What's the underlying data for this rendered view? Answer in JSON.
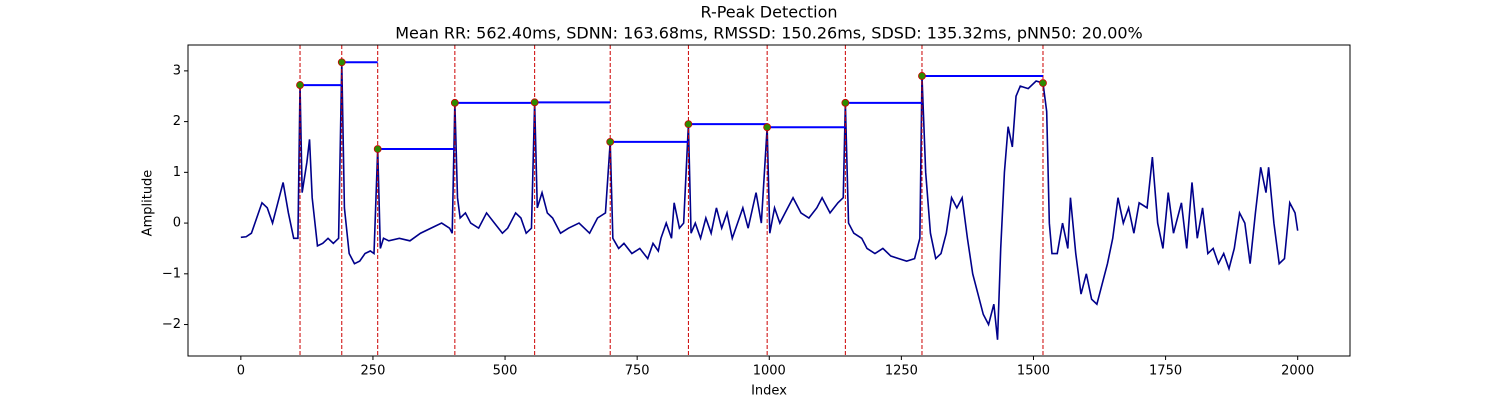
{
  "chart_data": {
    "type": "line",
    "title": "R-Peak Detection",
    "subtitle": "Mean RR: 562.40ms, SDNN: 163.68ms, RMSSD: 150.26ms, SDSD: 135.32ms, pNN50: 20.00%",
    "x_label": "Index",
    "y_label": "Amplitude",
    "xlim": [
      -100,
      2099
    ],
    "ylim": [
      -2.62,
      3.51
    ],
    "xticks": [
      0,
      250,
      500,
      750,
      1000,
      1250,
      1500,
      1750,
      2000
    ],
    "yticks": [
      {
        "value": -2,
        "label": "−2"
      },
      {
        "value": -1,
        "label": "−1"
      },
      0,
      1,
      2,
      3
    ],
    "signal": {
      "color": "#00008b",
      "x": [
        0,
        10,
        20,
        30,
        40,
        50,
        60,
        70,
        80,
        90,
        100,
        108,
        112,
        116,
        125,
        130,
        135,
        145,
        155,
        165,
        175,
        185,
        191,
        196,
        205,
        215,
        225,
        235,
        245,
        252,
        259,
        264,
        270,
        280,
        300,
        320,
        340,
        360,
        380,
        395,
        400,
        405,
        410,
        415,
        425,
        435,
        450,
        465,
        480,
        495,
        505,
        520,
        530,
        540,
        550,
        556,
        561,
        570,
        580,
        590,
        605,
        620,
        640,
        660,
        675,
        690,
        699,
        704,
        715,
        725,
        740,
        755,
        770,
        780,
        790,
        795,
        805,
        815,
        820,
        830,
        838,
        847,
        852,
        860,
        870,
        880,
        890,
        900,
        910,
        920,
        930,
        940,
        950,
        960,
        975,
        985,
        996,
        1001,
        1010,
        1020,
        1030,
        1045,
        1060,
        1075,
        1090,
        1100,
        1115,
        1130,
        1140,
        1144,
        1150,
        1160,
        1175,
        1185,
        1200,
        1215,
        1230,
        1245,
        1260,
        1275,
        1285,
        1289,
        1296,
        1305,
        1315,
        1325,
        1335,
        1345,
        1355,
        1365,
        1375,
        1385,
        1395,
        1405,
        1415,
        1425,
        1432,
        1438,
        1445,
        1452,
        1460,
        1467,
        1475,
        1490,
        1505,
        1518,
        1525,
        1530,
        1535,
        1545,
        1555,
        1565,
        1570,
        1580,
        1590,
        1600,
        1610,
        1620,
        1630,
        1640,
        1650,
        1660,
        1670,
        1680,
        1690,
        1700,
        1715,
        1725,
        1735,
        1745,
        1755,
        1765,
        1780,
        1790,
        1800,
        1810,
        1820,
        1830,
        1840,
        1850,
        1860,
        1870,
        1880,
        1890,
        1900,
        1910,
        1920,
        1930,
        1940,
        1945,
        1955,
        1965,
        1975,
        1985,
        1995,
        2000
      ],
      "values": [
        -0.28,
        -0.27,
        -0.2,
        0.1,
        0.4,
        0.3,
        0.0,
        0.4,
        0.8,
        0.2,
        -0.3,
        -0.3,
        2.72,
        0.6,
        1.2,
        1.65,
        0.5,
        -0.45,
        -0.4,
        -0.3,
        -0.4,
        -0.3,
        3.17,
        0.3,
        -0.6,
        -0.8,
        -0.75,
        -0.6,
        -0.55,
        -0.6,
        1.46,
        -0.5,
        -0.3,
        -0.35,
        -0.3,
        -0.35,
        -0.2,
        -0.1,
        0.0,
        -0.1,
        -0.2,
        2.37,
        0.5,
        0.1,
        0.2,
        0.0,
        -0.1,
        0.2,
        0.0,
        -0.2,
        -0.1,
        0.2,
        0.1,
        -0.2,
        -0.1,
        2.38,
        0.3,
        0.6,
        0.2,
        0.1,
        -0.2,
        -0.1,
        0.0,
        -0.2,
        0.1,
        0.2,
        1.6,
        -0.3,
        -0.5,
        -0.4,
        -0.6,
        -0.5,
        -0.7,
        -0.4,
        -0.55,
        -0.3,
        0.0,
        -0.3,
        0.4,
        -0.1,
        0.0,
        1.95,
        -0.2,
        0.0,
        -0.3,
        0.1,
        -0.2,
        0.3,
        -0.1,
        0.2,
        -0.3,
        0.0,
        0.3,
        -0.1,
        0.6,
        0.0,
        1.89,
        -0.2,
        0.3,
        0.0,
        0.2,
        0.5,
        0.2,
        0.1,
        0.3,
        0.5,
        0.2,
        0.4,
        0.5,
        2.37,
        0.0,
        -0.2,
        -0.3,
        -0.5,
        -0.6,
        -0.5,
        -0.65,
        -0.7,
        -0.75,
        -0.7,
        -0.3,
        2.9,
        1.0,
        -0.2,
        -0.7,
        -0.6,
        -0.2,
        0.5,
        0.3,
        0.5,
        -0.3,
        -1.0,
        -1.4,
        -1.8,
        -2.0,
        -1.6,
        -2.3,
        -0.5,
        1.0,
        1.9,
        1.5,
        2.5,
        2.7,
        2.65,
        2.8,
        2.76,
        2.2,
        0.0,
        -0.6,
        -0.6,
        0.0,
        -0.5,
        0.5,
        -0.6,
        -1.4,
        -1.0,
        -1.5,
        -1.6,
        -1.2,
        -0.8,
        -0.3,
        0.5,
        0.0,
        0.3,
        -0.2,
        0.4,
        0.3,
        1.3,
        0.0,
        -0.5,
        0.6,
        -0.2,
        0.4,
        -0.5,
        0.8,
        -0.3,
        0.3,
        -0.6,
        -0.5,
        -0.8,
        -0.6,
        -0.9,
        -0.5,
        0.2,
        0.0,
        -0.8,
        0.2,
        1.1,
        0.6,
        1.1,
        0.0,
        -0.8,
        -0.7,
        0.4,
        0.2,
        -0.15
      ]
    },
    "peaks": {
      "color": "#2e8b00",
      "edge_color": "#cc0000",
      "line_color": "#0000ff",
      "x": [
        112,
        191,
        259,
        405,
        556,
        699,
        847,
        996,
        1144,
        1289,
        1518
      ],
      "values": [
        2.72,
        3.17,
        1.46,
        2.37,
        2.38,
        1.6,
        1.95,
        1.89,
        2.37,
        2.9,
        2.76
      ]
    }
  }
}
